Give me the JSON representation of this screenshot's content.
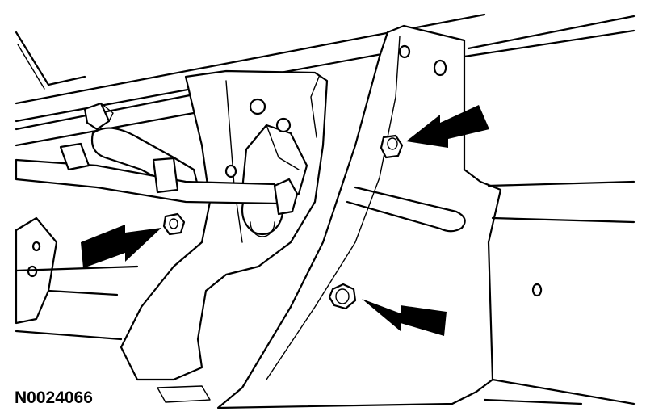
{
  "figure": {
    "reference_id": "N0024066",
    "callouts": [
      {
        "target": "upper-bolt",
        "icon": "arrow-left-icon"
      },
      {
        "target": "left-nut",
        "icon": "arrow-right-icon"
      },
      {
        "target": "lower-bolt",
        "icon": "arrow-left-icon"
      }
    ]
  }
}
